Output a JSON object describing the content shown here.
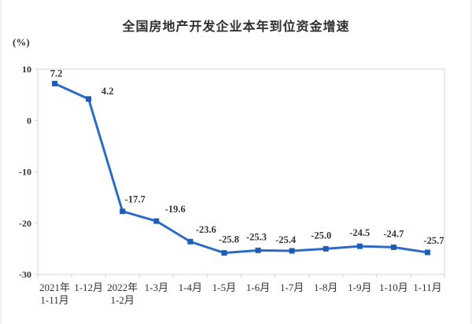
{
  "chart_data": {
    "type": "line",
    "title": "全国房地产开发企业本年到位资金增速",
    "ylabel": "(%)",
    "xlabel": "",
    "categories": [
      "2021年\n1-11月",
      "1-12月",
      "2022年\n1-2月",
      "1-3月",
      "1-4月",
      "1-5月",
      "1-6月",
      "1-7月",
      "1-8月",
      "1-9月",
      "1-10月",
      "1-11月"
    ],
    "values": [
      7.2,
      4.2,
      -17.7,
      -19.6,
      -23.6,
      -25.8,
      -25.3,
      -25.4,
      -25.0,
      -24.5,
      -24.7,
      -25.7
    ],
    "ylim": [
      -30,
      10
    ],
    "y_ticks": [
      10,
      0,
      -10,
      -20,
      -30
    ],
    "grid": false,
    "legend": "none",
    "line_color": "#2d6bc6",
    "marker_color": "#1d5db8",
    "label_color": "#333333",
    "axis_color": "#d4d4d4",
    "tick_label_color": "#333333"
  }
}
